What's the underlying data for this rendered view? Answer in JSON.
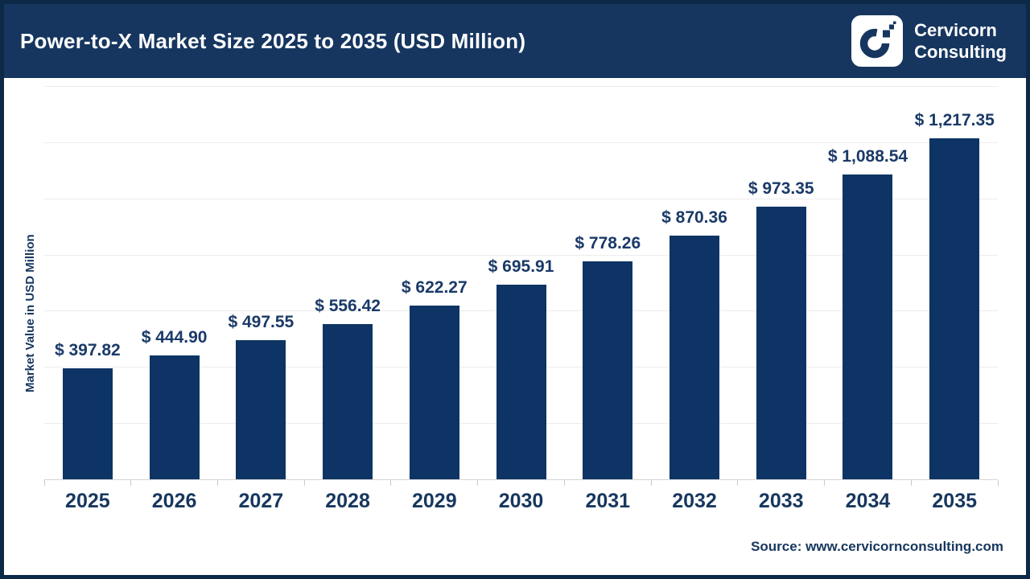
{
  "header": {
    "title": "Power-to-X Market Size 2025 to 2035 (USD Million)",
    "logo": {
      "name": "Cervicorn Consulting",
      "line1": "Cervicorn",
      "line2": "Consulting"
    }
  },
  "footer": {
    "source": "Source: www.cervicornconsulting.com"
  },
  "colors": {
    "border_navy": "#0d2948",
    "header_navy": "#16365f",
    "bar_navy": "#0d3464",
    "text_navy": "#17375e",
    "label_navy": "#1a3a68",
    "gridline_gray": "#ececec",
    "axis_gray": "#d4d4d4"
  },
  "chart_data": {
    "type": "bar",
    "title": "Power-to-X Market Size 2025 to 2035 (USD Million)",
    "categories": [
      "2025",
      "2026",
      "2027",
      "2028",
      "2029",
      "2030",
      "2031",
      "2032",
      "2033",
      "2034",
      "2035"
    ],
    "values": [
      397.82,
      444.9,
      497.55,
      556.42,
      622.27,
      695.91,
      778.26,
      870.36,
      973.35,
      1088.54,
      1217.35
    ],
    "labels": [
      "$ 397.82",
      "$ 444.90",
      "$ 497.55",
      "$ 556.42",
      "$ 622.27",
      "$ 695.91",
      "$ 778.26",
      "$ 870.36",
      "$ 973.35",
      "$ 1,088.54",
      "$ 1,217.35"
    ],
    "xlabel": "",
    "ylabel": "Market Value in USD Million",
    "ylim": [
      0,
      1400
    ],
    "grid_step": 200,
    "grid": true,
    "legend": false,
    "bar_color": "#0d3464"
  }
}
